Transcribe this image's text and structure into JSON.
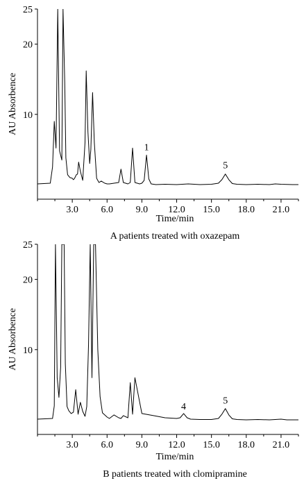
{
  "chart_data": [
    {
      "type": "line",
      "title": "",
      "caption": "A patients treated with oxazepam",
      "xlabel": "Time/min",
      "ylabel": "AU Absorbence",
      "xlim": [
        0,
        22.5
      ],
      "ylim": [
        0,
        25
      ],
      "xticks": [
        3.0,
        6.0,
        9.0,
        12.0,
        15.0,
        18.0,
        21.0
      ],
      "xtick_labels": [
        "3.0",
        "6.0",
        "9.0",
        "12.0",
        "15.0",
        "18.0",
        "21.0"
      ],
      "yticks": [
        10,
        20,
        25
      ],
      "ytick_labels": [
        "10",
        "20",
        "25"
      ],
      "grid": false,
      "peak_labels": [
        {
          "text": "1",
          "x": 9.4,
          "y": 4.9
        },
        {
          "text": "5",
          "x": 16.2,
          "y": 2.3
        }
      ],
      "series": [
        {
          "x": [
            0.0,
            1.1,
            1.3,
            1.45,
            1.6,
            1.75,
            1.9,
            2.1,
            2.2,
            2.35,
            2.45,
            2.6,
            2.8,
            3.0,
            3.1,
            3.2,
            3.35,
            3.45,
            3.55,
            3.7,
            3.9,
            4.1,
            4.2,
            4.35,
            4.5,
            4.6,
            4.75,
            4.9,
            5.1,
            5.3,
            5.5,
            5.8,
            6.0,
            6.2,
            6.6,
            7.0,
            7.2,
            7.4,
            7.8,
            8.0,
            8.2,
            8.4,
            8.8,
            9.0,
            9.2,
            9.4,
            9.6,
            9.8,
            10.2,
            11.0,
            12.0,
            13.0,
            14.0,
            15.0,
            15.6,
            15.9,
            16.2,
            16.5,
            16.8,
            17.2,
            18.0,
            19.0,
            20.0,
            20.5,
            21.0,
            22.0,
            22.5
          ],
          "values": [
            0.1,
            0.2,
            2.5,
            9.0,
            5.2,
            25,
            4.8,
            3.5,
            25,
            14.5,
            3.8,
            1.4,
            1.0,
            0.9,
            0.7,
            0.9,
            1.4,
            1.5,
            3.2,
            1.9,
            0.6,
            6.0,
            16.2,
            7.5,
            3.0,
            5.0,
            13.1,
            6.0,
            0.9,
            0.3,
            0.5,
            0.2,
            0.1,
            0.1,
            0.2,
            0.3,
            2.2,
            0.3,
            0.1,
            0.3,
            5.2,
            0.3,
            0.1,
            0.2,
            0.6,
            4.2,
            0.8,
            0.1,
            0.0,
            0.05,
            0.0,
            0.1,
            0.0,
            0.05,
            0.2,
            0.7,
            1.5,
            0.7,
            0.15,
            0.05,
            0.0,
            0.05,
            0.0,
            0.1,
            0.05,
            0.0,
            0.0
          ]
        }
      ]
    },
    {
      "type": "line",
      "title": "",
      "caption": "B patients treated with clomipramine",
      "xlabel": "Time/min",
      "ylabel": "AU Absorbence",
      "xlim": [
        0,
        22.5
      ],
      "ylim": [
        0,
        25
      ],
      "xticks": [
        3.0,
        6.0,
        9.0,
        12.0,
        15.0,
        18.0,
        21.0
      ],
      "xtick_labels": [
        "3.0",
        "6.0",
        "9.0",
        "12.0",
        "15.0",
        "18.0",
        "21.0"
      ],
      "yticks": [
        10,
        20,
        25
      ],
      "ytick_labels": [
        "10",
        "20",
        "25"
      ],
      "grid": false,
      "peak_labels": [
        {
          "text": "4",
          "x": 12.6,
          "y": 1.5
        },
        {
          "text": "5",
          "x": 16.2,
          "y": 2.3
        }
      ],
      "series": [
        {
          "x": [
            0.0,
            1.3,
            1.45,
            1.55,
            1.7,
            1.85,
            2.0,
            2.1,
            2.3,
            2.4,
            2.55,
            2.7,
            2.9,
            3.1,
            3.3,
            3.5,
            3.7,
            3.9,
            4.1,
            4.25,
            4.4,
            4.55,
            4.7,
            4.85,
            5.0,
            5.2,
            5.4,
            5.6,
            6.0,
            6.2,
            6.6,
            7.0,
            7.2,
            7.4,
            7.8,
            8.0,
            8.2,
            8.4,
            9.0,
            10.0,
            11.0,
            12.0,
            12.3,
            12.6,
            12.9,
            13.2,
            14.0,
            15.0,
            15.6,
            15.9,
            16.2,
            16.5,
            16.8,
            17.2,
            18.0,
            19.0,
            20.0,
            21.0,
            21.5,
            22.0,
            22.5
          ],
          "values": [
            0.1,
            0.2,
            2.0,
            25,
            6.0,
            3.2,
            7.5,
            25,
            25,
            8.0,
            1.9,
            1.3,
            0.9,
            1.1,
            4.3,
            0.8,
            2.5,
            1.2,
            0.5,
            1.9,
            10.5,
            25,
            6.0,
            25,
            25,
            10.0,
            3.3,
            1.0,
            0.4,
            0.2,
            0.7,
            0.3,
            0.2,
            0.6,
            0.3,
            5.3,
            0.8,
            6.0,
            0.9,
            0.6,
            0.3,
            0.2,
            0.3,
            0.9,
            0.3,
            0.1,
            0.05,
            0.05,
            0.2,
            0.8,
            1.6,
            0.7,
            0.15,
            0.05,
            0.0,
            0.05,
            0.0,
            0.1,
            0.0,
            0.0,
            0.0
          ]
        }
      ]
    }
  ]
}
